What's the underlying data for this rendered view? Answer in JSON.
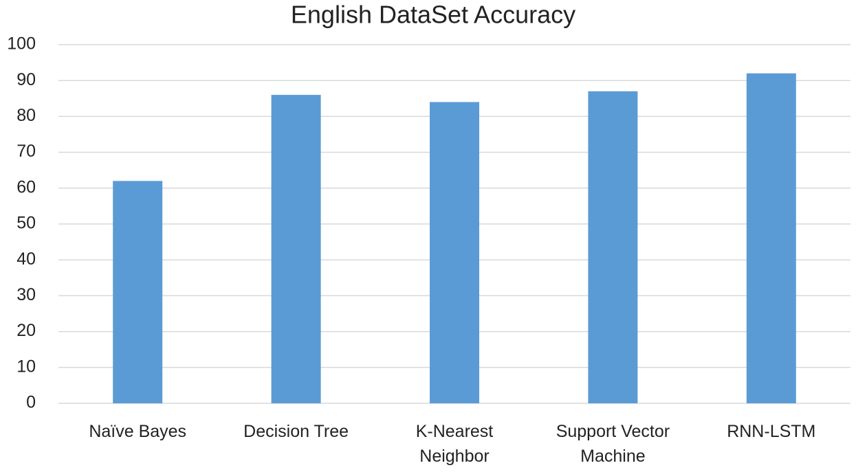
{
  "chart_data": {
    "type": "bar",
    "title": "English DataSet Accuracy",
    "categories": [
      "Naïve Bayes",
      "Decision Tree",
      "K-Nearest Neighbor",
      "Support Vector Machine",
      "RNN-LSTM"
    ],
    "values": [
      62,
      86,
      84,
      87,
      92
    ],
    "color": "#5b9bd5",
    "ylim": [
      0,
      100
    ],
    "yticks": [
      0,
      10,
      20,
      30,
      40,
      50,
      60,
      70,
      80,
      90,
      100
    ],
    "grid": true
  }
}
